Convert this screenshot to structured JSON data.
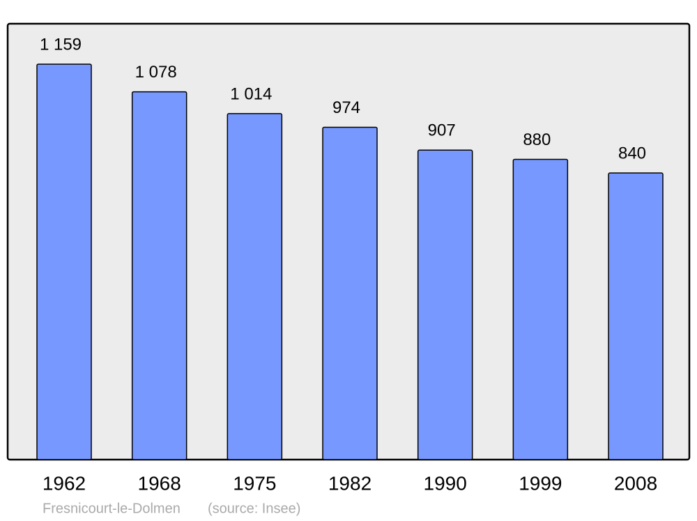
{
  "chart_data": {
    "type": "bar",
    "categories": [
      "1962",
      "1968",
      "1975",
      "1982",
      "1990",
      "1999",
      "2008"
    ],
    "values": [
      1159,
      1078,
      1014,
      974,
      907,
      880,
      840
    ],
    "value_labels": [
      "1 159",
      "1 078",
      "1 014",
      "974",
      "907",
      "880",
      "840"
    ],
    "color": "#7799ff",
    "caption": "Fresnicourt-le-Dolmen",
    "source": "(source: Insee)"
  }
}
